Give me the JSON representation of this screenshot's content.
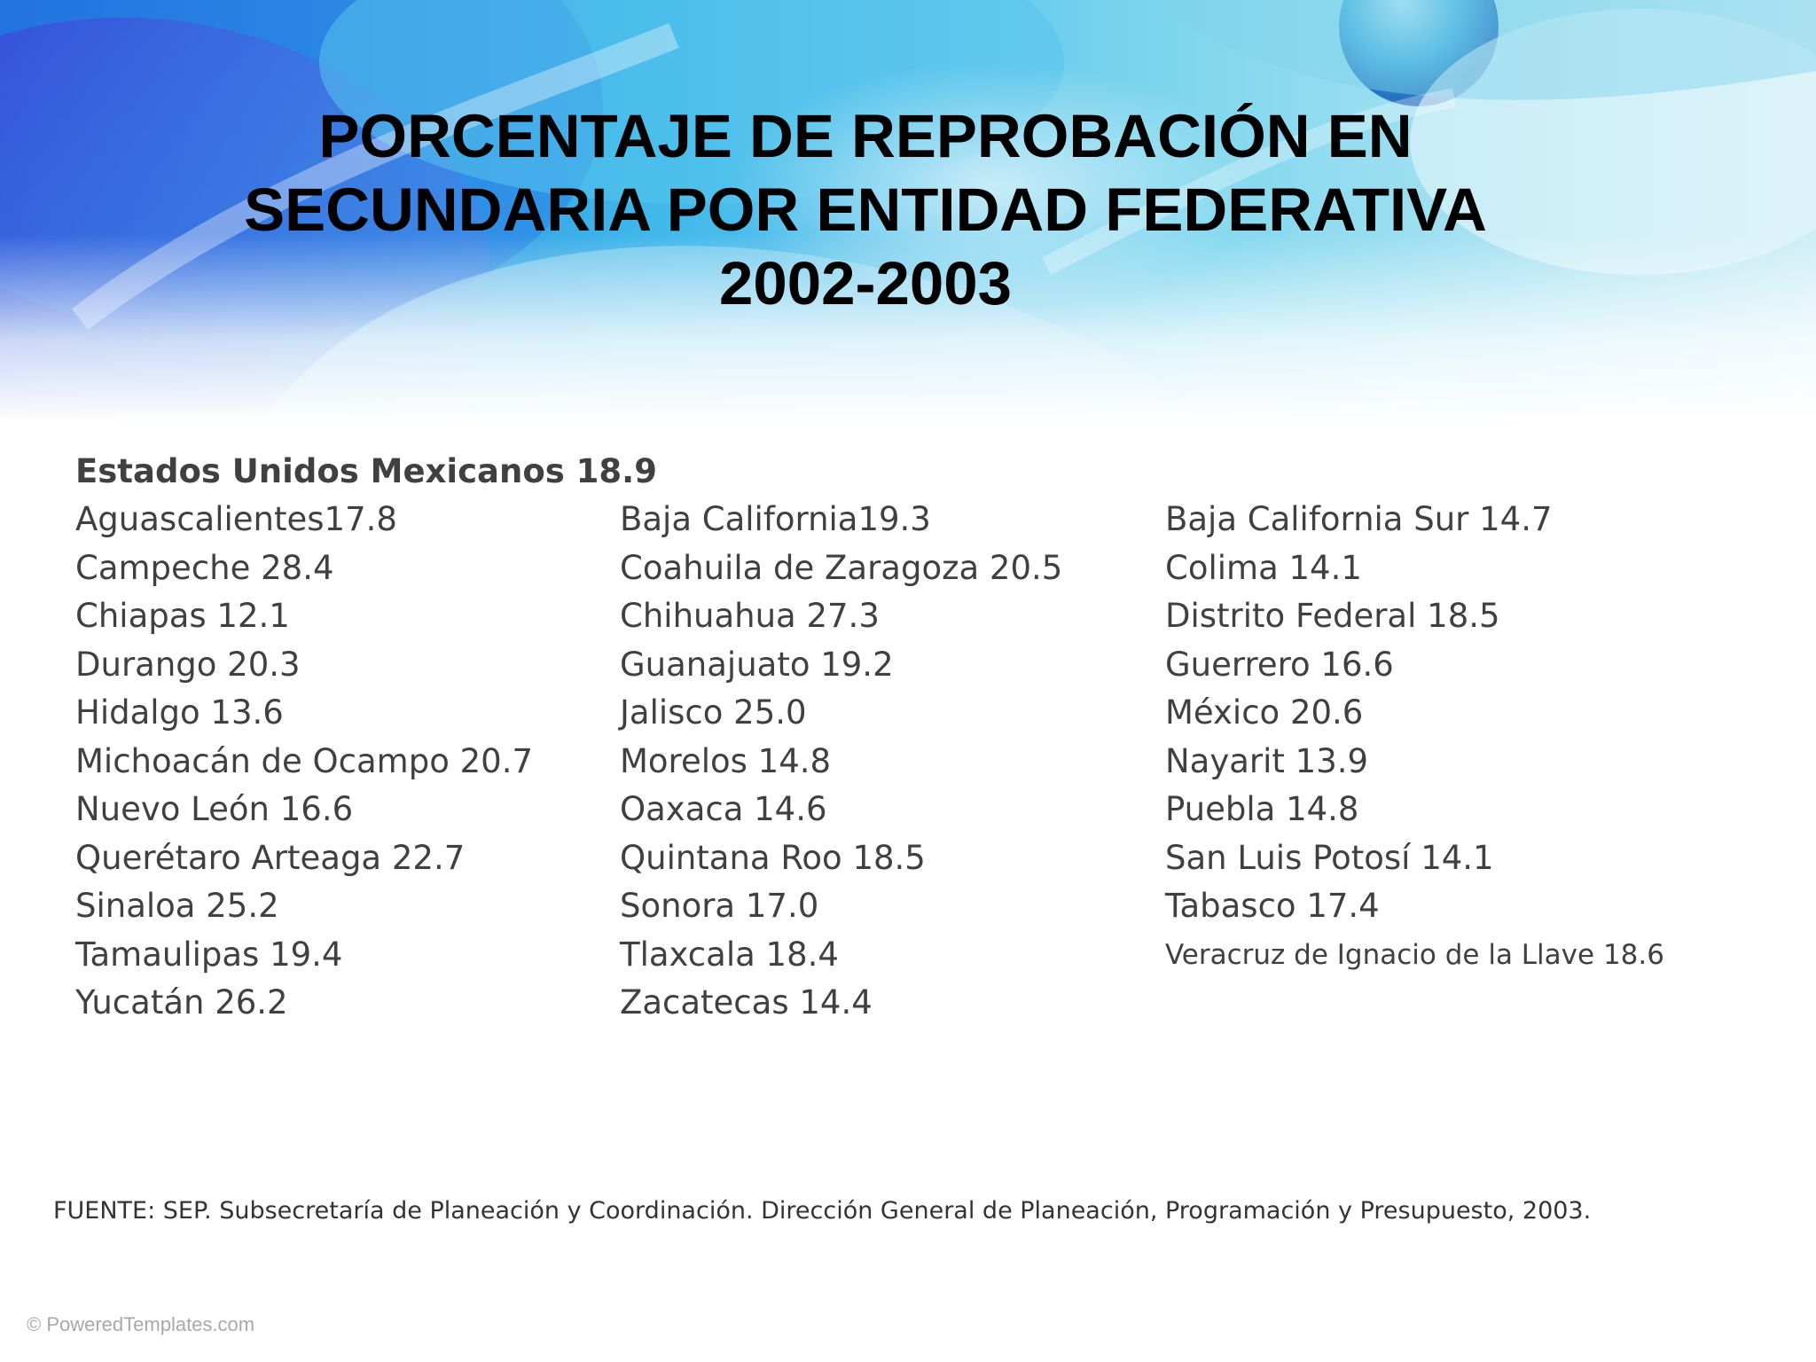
{
  "title": {
    "line1": "PORCENTAJE DE REPROBACIÓN EN",
    "line2": "SECUNDARIA POR ENTIDAD FEDERATIVA",
    "line3": "2002-2003"
  },
  "national": "Estados Unidos Mexicanos 18.9",
  "columns": [
    [
      "Aguascalientes17.8",
      "Campeche 28.4",
      "Chiapas 12.1",
      "Durango 20.3",
      "Hidalgo 13.6",
      "Michoacán de Ocampo 20.7",
      "Nuevo León 16.6",
      "Querétaro Arteaga 22.7",
      "Sinaloa 25.2",
      "Tamaulipas 19.4",
      "Yucatán 26.2"
    ],
    [
      "Baja California19.3",
      "Coahuila de Zaragoza 20.5",
      "Chihuahua 27.3",
      "Guanajuato 19.2",
      "Jalisco 25.0",
      "Morelos 14.8",
      "Oaxaca 14.6",
      "Quintana Roo 18.5",
      "Sonora 17.0",
      "Tlaxcala 18.4",
      "Zacatecas 14.4"
    ],
    [
      "Baja California Sur 14.7",
      "Colima 14.1",
      "Distrito Federal 18.5",
      "Guerrero 16.6",
      "México 20.6",
      "Nayarit 13.9",
      "Puebla 14.8",
      "San Luis Potosí 14.1",
      "Tabasco 17.4",
      "Veracruz de Ignacio de la Llave 18.6"
    ]
  ],
  "source": "FUENTE: SEP. Subsecretaría de Planeación y Coordinación. Dirección General de Planeación, Programación y Presupuesto, 2003.",
  "watermark": "© PoweredTemplates.com",
  "colors": {
    "title": "#000000",
    "body_text": "#404040",
    "accent_blue": "#1e6fd9",
    "accent_cyan": "#38c6e8"
  }
}
